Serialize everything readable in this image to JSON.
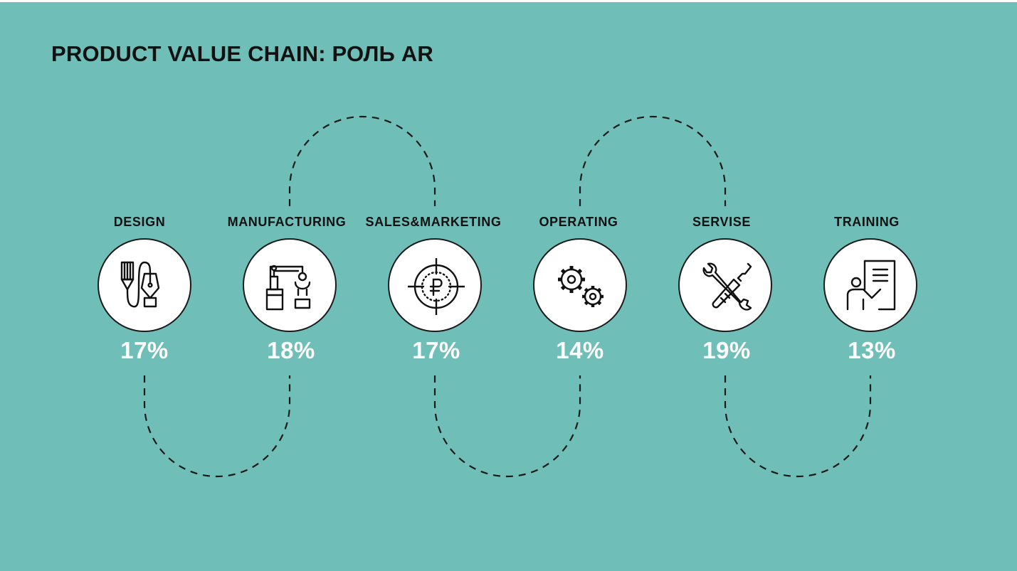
{
  "title": "PRODUCT VALUE CHAIN: РОЛЬ AR",
  "colors": {
    "background": "#6fbfb8",
    "circle_fill": "#ffffff",
    "outline": "#1a1a1a",
    "percent_text": "#ffffff",
    "label_text": "#111111"
  },
  "stages": [
    {
      "label": "DESIGN",
      "share": "17%",
      "icon": "design-tools-icon"
    },
    {
      "label": "MANUFACTURING",
      "share": "18%",
      "icon": "robotic-arm-icon"
    },
    {
      "label": "SALES&MARKETING",
      "share": "17%",
      "icon": "ruble-target-icon"
    },
    {
      "label": "OPERATING",
      "share": "14%",
      "icon": "gears-icon"
    },
    {
      "label": "SERVISE",
      "share": "19%",
      "icon": "wrench-screwdriver-icon"
    },
    {
      "label": "TRAINING",
      "share": "13%",
      "icon": "presenter-board-icon"
    }
  ]
}
